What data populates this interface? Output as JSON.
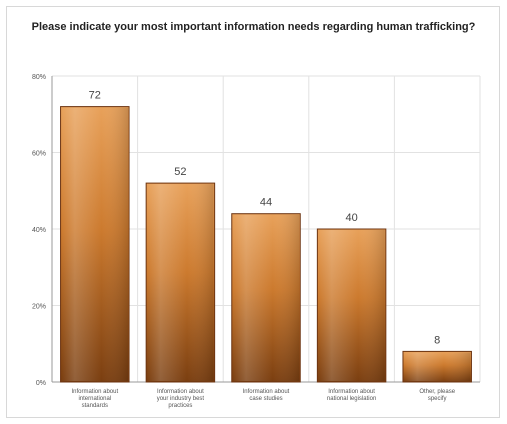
{
  "chart_data": {
    "type": "bar",
    "title": "Please indicate your most important information needs regarding human trafficking?",
    "categories": [
      "Information about international standards",
      "Information about your industry best practices",
      "Information about case studies",
      "Information about national legislation",
      "Other, please specify"
    ],
    "values": [
      72,
      52,
      44,
      40,
      8
    ],
    "data_labels": [
      "72",
      "52",
      "44",
      "40",
      "8"
    ],
    "ylim": [
      0,
      80
    ],
    "yticks": [
      0,
      20,
      40,
      60,
      80
    ],
    "ytick_labels": [
      "0%",
      "20%",
      "40%",
      "60%",
      "80%"
    ],
    "grid": true,
    "legend": "none",
    "colors": {
      "bar_top": "#e8a15a",
      "bar_bottom": "#7a3e10",
      "bar_edge": "#6b3310",
      "grid": "#e2e2e2",
      "axis": "#999999"
    }
  }
}
